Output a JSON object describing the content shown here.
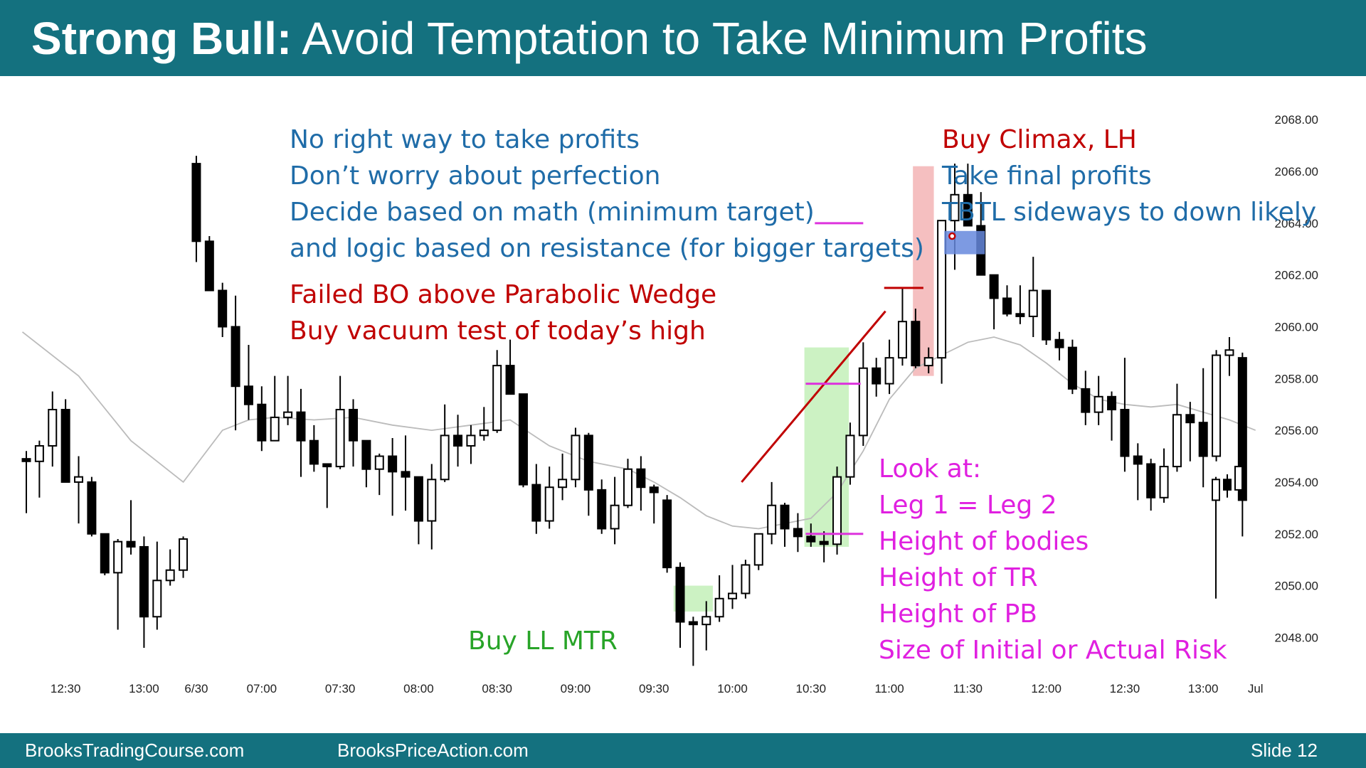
{
  "slide": {
    "title_bold": "Strong Bull:",
    "title_rest": "Avoid Temptation to Take Minimum Profits",
    "footer_left": "BrooksTradingCourse.com",
    "footer_mid": "BrooksPriceAction.com",
    "footer_right": "Slide  12",
    "header_color": "#14717f"
  },
  "annotations": {
    "blue_top": [
      "No right way to take profits",
      "Don’t worry about perfection",
      "Decide based on math (minimum target)",
      "and logic based on resistance (for bigger targets)"
    ],
    "red_left": [
      "Failed BO above Parabolic Wedge",
      "Buy vacuum test of today’s high"
    ],
    "red_right": "Buy Climax, LH",
    "blue_right": [
      "Take final profits",
      "TBTL sideways to down likely"
    ],
    "green": "Buy LL MTR",
    "magenta": [
      "Look at:",
      "Leg 1 = Leg 2",
      "Height of bodies",
      "Height of TR",
      "Height of PB",
      "Size of Initial or Actual Risk"
    ]
  },
  "chart_data": {
    "type": "candlestick",
    "ylim": [
      2046.5,
      2068.5
    ],
    "yticks": [
      "2048.00",
      "2050.00",
      "2052.00",
      "2054.00",
      "2056.00",
      "2058.00",
      "2060.00",
      "2062.00",
      "2064.00",
      "2066.00",
      "2068.00"
    ],
    "xticks": [
      {
        "label": "12:30",
        "bar": 3
      },
      {
        "label": "13:00",
        "bar": 9
      },
      {
        "label": "6/30",
        "bar": 13
      },
      {
        "label": "07:00",
        "bar": 18
      },
      {
        "label": "07:30",
        "bar": 24
      },
      {
        "label": "08:00",
        "bar": 30
      },
      {
        "label": "08:30",
        "bar": 36
      },
      {
        "label": "09:00",
        "bar": 42
      },
      {
        "label": "09:30",
        "bar": 48
      },
      {
        "label": "10:00",
        "bar": 54
      },
      {
        "label": "10:30",
        "bar": 60
      },
      {
        "label": "11:00",
        "bar": 66
      },
      {
        "label": "11:30",
        "bar": 72
      },
      {
        "label": "12:00",
        "bar": 78
      },
      {
        "label": "12:30",
        "bar": 84
      },
      {
        "label": "13:00",
        "bar": 90
      },
      {
        "label": "Jul",
        "bar": 94
      }
    ],
    "bars": [
      [
        2054.9,
        2055.2,
        2052.8,
        2054.8
      ],
      [
        2054.8,
        2055.6,
        2053.4,
        2055.4
      ],
      [
        2055.4,
        2057.5,
        2054.6,
        2056.8
      ],
      [
        2056.8,
        2057.2,
        2054.0,
        2054.0
      ],
      [
        2054.0,
        2055.0,
        2052.4,
        2054.2
      ],
      [
        2054.0,
        2054.2,
        2051.9,
        2052.0
      ],
      [
        2052.0,
        2052.0,
        2050.4,
        2050.5
      ],
      [
        2050.5,
        2051.8,
        2048.3,
        2051.7
      ],
      [
        2051.7,
        2053.3,
        2051.2,
        2051.5
      ],
      [
        2051.5,
        2051.9,
        2047.6,
        2048.8
      ],
      [
        2048.8,
        2051.7,
        2048.3,
        2050.2
      ],
      [
        2050.2,
        2051.4,
        2050.0,
        2050.6
      ],
      [
        2050.6,
        2051.9,
        2050.3,
        2051.8
      ],
      [
        2066.3,
        2066.6,
        2062.5,
        2063.3
      ],
      [
        2063.3,
        2063.5,
        2062.4,
        2061.4
      ],
      [
        2061.4,
        2061.7,
        2059.6,
        2060.0
      ],
      [
        2060.0,
        2061.2,
        2056.0,
        2057.7
      ],
      [
        2057.7,
        2059.3,
        2056.4,
        2057.0
      ],
      [
        2057.0,
        2057.7,
        2055.2,
        2055.6
      ],
      [
        2055.6,
        2058.1,
        2055.6,
        2056.5
      ],
      [
        2056.5,
        2058.1,
        2056.2,
        2056.7
      ],
      [
        2056.7,
        2057.6,
        2054.2,
        2055.6
      ],
      [
        2055.6,
        2056.2,
        2054.4,
        2054.7
      ],
      [
        2054.7,
        2054.7,
        2053.0,
        2054.6
      ],
      [
        2054.6,
        2058.1,
        2054.5,
        2056.8
      ],
      [
        2056.8,
        2057.2,
        2054.6,
        2055.6
      ],
      [
        2055.6,
        2055.6,
        2053.8,
        2054.5
      ],
      [
        2054.5,
        2055.1,
        2053.5,
        2055.0
      ],
      [
        2055.0,
        2055.7,
        2052.7,
        2054.4
      ],
      [
        2054.4,
        2055.8,
        2052.9,
        2054.2
      ],
      [
        2054.2,
        2054.2,
        2051.6,
        2052.5
      ],
      [
        2052.5,
        2054.7,
        2051.4,
        2054.1
      ],
      [
        2054.1,
        2057.0,
        2054.0,
        2055.8
      ],
      [
        2055.8,
        2056.6,
        2054.6,
        2055.4
      ],
      [
        2055.4,
        2056.2,
        2054.7,
        2055.8
      ],
      [
        2055.8,
        2056.9,
        2055.6,
        2056.0
      ],
      [
        2056.0,
        2059.1,
        2055.9,
        2058.5
      ],
      [
        2058.5,
        2059.5,
        2057.8,
        2057.4
      ],
      [
        2057.4,
        2057.4,
        2053.8,
        2053.9
      ],
      [
        2053.9,
        2054.7,
        2052.0,
        2052.5
      ],
      [
        2052.5,
        2054.6,
        2052.2,
        2053.8
      ],
      [
        2053.8,
        2055.1,
        2053.3,
        2054.1
      ],
      [
        2054.1,
        2056.1,
        2053.8,
        2055.8
      ],
      [
        2055.8,
        2055.9,
        2052.7,
        2053.7
      ],
      [
        2053.7,
        2054.1,
        2052.0,
        2052.2
      ],
      [
        2052.2,
        2054.2,
        2051.6,
        2053.1
      ],
      [
        2053.1,
        2054.9,
        2053.0,
        2054.5
      ],
      [
        2054.5,
        2055.0,
        2052.9,
        2053.8
      ],
      [
        2053.8,
        2053.9,
        2052.4,
        2053.6
      ],
      [
        2053.3,
        2053.5,
        2050.5,
        2050.7
      ],
      [
        2050.7,
        2050.9,
        2047.6,
        2048.6
      ],
      [
        2048.6,
        2048.8,
        2046.9,
        2048.5
      ],
      [
        2048.5,
        2049.4,
        2047.5,
        2048.8
      ],
      [
        2048.8,
        2050.4,
        2048.6,
        2049.5
      ],
      [
        2049.5,
        2050.8,
        2049.1,
        2049.7
      ],
      [
        2049.7,
        2051.0,
        2049.5,
        2050.8
      ],
      [
        2050.8,
        2052.0,
        2050.6,
        2052.0
      ],
      [
        2052.0,
        2054.0,
        2051.6,
        2053.1
      ],
      [
        2053.1,
        2053.2,
        2051.5,
        2052.2
      ],
      [
        2052.2,
        2052.8,
        2051.3,
        2051.9
      ],
      [
        2051.9,
        2052.4,
        2051.5,
        2051.7
      ],
      [
        2051.7,
        2052.1,
        2050.9,
        2051.6
      ],
      [
        2051.6,
        2054.6,
        2051.2,
        2054.2
      ],
      [
        2054.2,
        2056.3,
        2053.9,
        2055.8
      ],
      [
        2055.8,
        2059.4,
        2055.4,
        2058.4
      ],
      [
        2058.4,
        2058.8,
        2057.3,
        2057.8
      ],
      [
        2057.8,
        2059.5,
        2057.4,
        2058.8
      ],
      [
        2058.8,
        2061.5,
        2058.5,
        2060.2
      ],
      [
        2060.2,
        2060.7,
        2058.4,
        2058.5
      ],
      [
        2058.5,
        2059.2,
        2058.2,
        2058.8
      ],
      [
        2058.8,
        2063.8,
        2057.8,
        2064.1
      ],
      [
        2064.1,
        2066.3,
        2062.2,
        2065.1
      ],
      [
        2065.1,
        2066.3,
        2063.9,
        2063.9
      ],
      [
        2063.9,
        2065.2,
        2062.1,
        2062.0
      ],
      [
        2062.0,
        2062.0,
        2059.9,
        2061.1
      ],
      [
        2061.1,
        2061.6,
        2060.4,
        2060.5
      ],
      [
        2060.5,
        2061.6,
        2060.1,
        2060.4
      ],
      [
        2060.4,
        2062.7,
        2059.6,
        2061.4
      ],
      [
        2061.4,
        2061.4,
        2059.3,
        2059.5
      ],
      [
        2059.5,
        2059.8,
        2058.7,
        2059.2
      ],
      [
        2059.2,
        2059.5,
        2057.4,
        2057.6
      ],
      [
        2057.6,
        2058.3,
        2056.2,
        2056.7
      ],
      [
        2056.7,
        2058.1,
        2056.2,
        2057.3
      ],
      [
        2057.3,
        2057.5,
        2055.6,
        2056.8
      ],
      [
        2056.8,
        2058.8,
        2054.4,
        2055.0
      ],
      [
        2055.0,
        2055.5,
        2053.3,
        2054.7
      ],
      [
        2054.7,
        2054.9,
        2052.9,
        2053.4
      ],
      [
        2053.4,
        2055.3,
        2053.2,
        2054.6
      ],
      [
        2054.6,
        2057.8,
        2054.4,
        2056.6
      ],
      [
        2056.6,
        2057.1,
        2054.8,
        2056.3
      ],
      [
        2056.3,
        2058.4,
        2053.8,
        2055.0
      ],
      [
        2055.0,
        2059.1,
        2054.8,
        2058.9
      ],
      [
        2058.9,
        2059.6,
        2058.1,
        2059.1
      ],
      [
        2058.8,
        2059.0,
        2051.9,
        2053.3
      ]
    ],
    "tail_bars": [
      [
        2053.3,
        2054.2,
        2049.5,
        2054.1
      ],
      [
        2054.1,
        2054.3,
        2053.4,
        2053.7
      ],
      [
        2053.7,
        2055.0,
        2053.5,
        2054.6
      ]
    ],
    "ema": [
      [
        -0.3,
        2059.8
      ],
      [
        4,
        2058.1
      ],
      [
        8,
        2055.6
      ],
      [
        12,
        2054.0
      ],
      [
        13.5,
        2055.0
      ],
      [
        15,
        2056.0
      ],
      [
        17,
        2056.4
      ],
      [
        19,
        2056.5
      ],
      [
        22,
        2056.4
      ],
      [
        25,
        2056.5
      ],
      [
        28,
        2056.2
      ],
      [
        31,
        2056.0
      ],
      [
        34,
        2056.2
      ],
      [
        37,
        2056.4
      ],
      [
        40,
        2055.4
      ],
      [
        43,
        2054.8
      ],
      [
        46,
        2054.5
      ],
      [
        48,
        2054.0
      ],
      [
        50,
        2053.4
      ],
      [
        52,
        2052.7
      ],
      [
        54,
        2052.3
      ],
      [
        56,
        2052.2
      ],
      [
        58,
        2052.4
      ],
      [
        60,
        2052.6
      ],
      [
        62,
        2053.6
      ],
      [
        64,
        2055.2
      ],
      [
        66,
        2057.2
      ],
      [
        68,
        2058.4
      ],
      [
        70,
        2058.9
      ],
      [
        72,
        2059.4
      ],
      [
        74,
        2059.6
      ],
      [
        76,
        2059.3
      ],
      [
        78,
        2058.6
      ],
      [
        80,
        2057.8
      ],
      [
        82,
        2057.2
      ],
      [
        84,
        2057.0
      ],
      [
        86,
        2056.9
      ],
      [
        88,
        2057.0
      ],
      [
        90,
        2056.7
      ],
      [
        92,
        2056.4
      ],
      [
        94,
        2056.0
      ]
    ],
    "bull_trend_line": [
      [
        54.7,
        2054.0
      ],
      [
        65.7,
        2060.6
      ]
    ],
    "red_hline": {
      "bar0": 65.6,
      "bar1": 68.6,
      "y": 2061.5
    },
    "magenta_lines": [
      {
        "bar0": 60.3,
        "bar1": 64.0,
        "y": 2064.0
      },
      {
        "bar0": 59.6,
        "bar1": 63.8,
        "y": 2057.8
      },
      {
        "bar0": 59.6,
        "bar1": 64.0,
        "y": 2052.0
      }
    ],
    "green_rects": [
      {
        "bar0": 49.5,
        "bar1": 52.5,
        "ylo": 2049.0,
        "yhi": 2050.0
      },
      {
        "bar0": 59.5,
        "bar1": 62.9,
        "ylo": 2051.5,
        "yhi": 2059.2
      }
    ],
    "red_rect": {
      "bar0": 67.8,
      "bar1": 69.4,
      "ylo": 2058.1,
      "yhi": 2066.2
    },
    "blue_rect": {
      "bar0": 70.2,
      "bar1": 73.3,
      "ylo": 2062.8,
      "yhi": 2063.7
    },
    "red_dot": {
      "bar": 70.8,
      "y": 2063.5
    },
    "colors": {
      "ema": "#bbbbbb",
      "trend_line": "#c00000",
      "magenta": "#dd33dd",
      "green_fill": "#ccf2c3",
      "red_fill": "#f5bfc0",
      "blue_fill": "#6688dd"
    }
  }
}
